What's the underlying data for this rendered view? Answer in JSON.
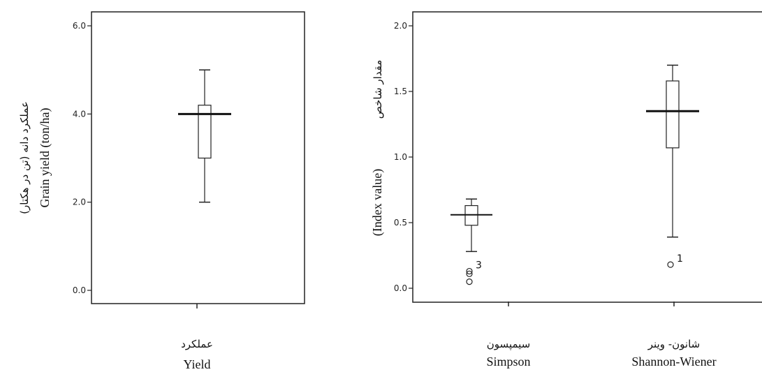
{
  "chart_data": [
    {
      "type": "box",
      "ylabel_fa": "عملکرد دانه (تن در هکتار)",
      "ylabel_en": "Grain yield (ton/ha)",
      "yticks": [
        "0.0",
        "2.0",
        "4.0",
        "6.0"
      ],
      "ylim": [
        0,
        6
      ],
      "grid": false,
      "categories": [
        {
          "label_fa": "عملکرد",
          "label_en": "Yield",
          "min": 2.0,
          "q1": 3.0,
          "median": 4.0,
          "q3": 4.2,
          "max": 5.0,
          "outliers": []
        }
      ]
    },
    {
      "type": "box",
      "ylabel_fa": "مقدار شاخص",
      "ylabel_en": "(Index value)",
      "yticks": [
        "0.0",
        "0.5",
        "1.0",
        "1.5",
        "2.0"
      ],
      "ylim": [
        0,
        2
      ],
      "grid": false,
      "categories": [
        {
          "label_fa": "سیمپسون",
          "label_en": "Simpson",
          "min": 0.28,
          "q1": 0.48,
          "median": 0.56,
          "q3": 0.63,
          "max": 0.68,
          "outliers": [
            0.13,
            0.11,
            0.05
          ],
          "outlier_label": "3"
        },
        {
          "label_fa": "شانون- وینر",
          "label_en": "Shannon-Wiener",
          "min": 0.39,
          "q1": 1.07,
          "median": 1.35,
          "q3": 1.58,
          "max": 1.7,
          "outliers": [
            0.18
          ],
          "outlier_label": "1"
        }
      ]
    }
  ]
}
